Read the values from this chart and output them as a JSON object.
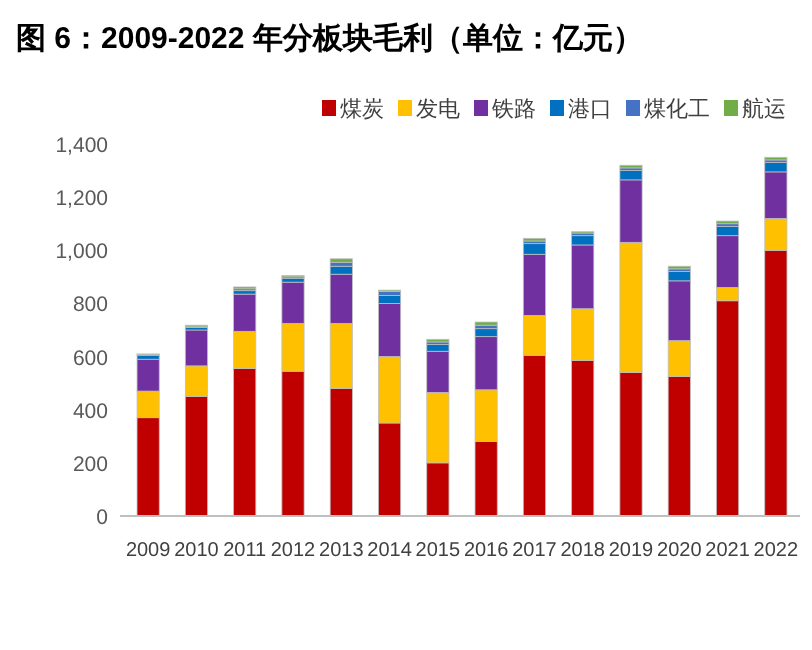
{
  "chart_data": {
    "type": "bar",
    "title": "图 6：2009-2022 年分板块毛利（单位：亿元）",
    "stacked": true,
    "legend": "top right",
    "grid": false,
    "categories": [
      "2009",
      "2010",
      "2011",
      "2012",
      "2013",
      "2014",
      "2015",
      "2016",
      "2017",
      "2018",
      "2019",
      "2020",
      "2021",
      "2022"
    ],
    "ylim": [
      0,
      1400
    ],
    "yticks": [
      {
        "value": 0,
        "label": "0"
      },
      {
        "value": 200,
        "label": "200"
      },
      {
        "value": 400,
        "label": "400"
      },
      {
        "value": 600,
        "label": "600"
      },
      {
        "value": 800,
        "label": "800"
      },
      {
        "value": 1000,
        "label": "1,000"
      },
      {
        "value": 1200,
        "label": "1,200"
      },
      {
        "value": 1400,
        "label": "1,400"
      }
    ],
    "series": [
      {
        "name": "煤炭",
        "color": "#c00000",
        "values": [
          370,
          450,
          555,
          545,
          480,
          350,
          200,
          280,
          605,
          585,
          540,
          525,
          810,
          1000
        ]
      },
      {
        "name": "发电",
        "color": "#ffc000",
        "values": [
          100,
          115,
          140,
          180,
          245,
          250,
          265,
          195,
          150,
          195,
          490,
          135,
          50,
          120
        ]
      },
      {
        "name": "铁路",
        "color": "#7030a0",
        "values": [
          120,
          135,
          140,
          155,
          185,
          200,
          155,
          200,
          230,
          240,
          235,
          225,
          195,
          175
        ]
      },
      {
        "name": "港口",
        "color": "#0070c0",
        "values": [
          15,
          10,
          13,
          15,
          30,
          30,
          25,
          30,
          40,
          35,
          35,
          35,
          35,
          35
        ]
      },
      {
        "name": "煤化工",
        "color": "#4472c4",
        "values": [
          3,
          2,
          7,
          5,
          15,
          15,
          10,
          13,
          10,
          10,
          10,
          10,
          10,
          10
        ]
      },
      {
        "name": "航运",
        "color": "#70ad47",
        "values": [
          2,
          6,
          7,
          5,
          13,
          5,
          10,
          12,
          10,
          5,
          10,
          10,
          10,
          10
        ]
      }
    ]
  }
}
